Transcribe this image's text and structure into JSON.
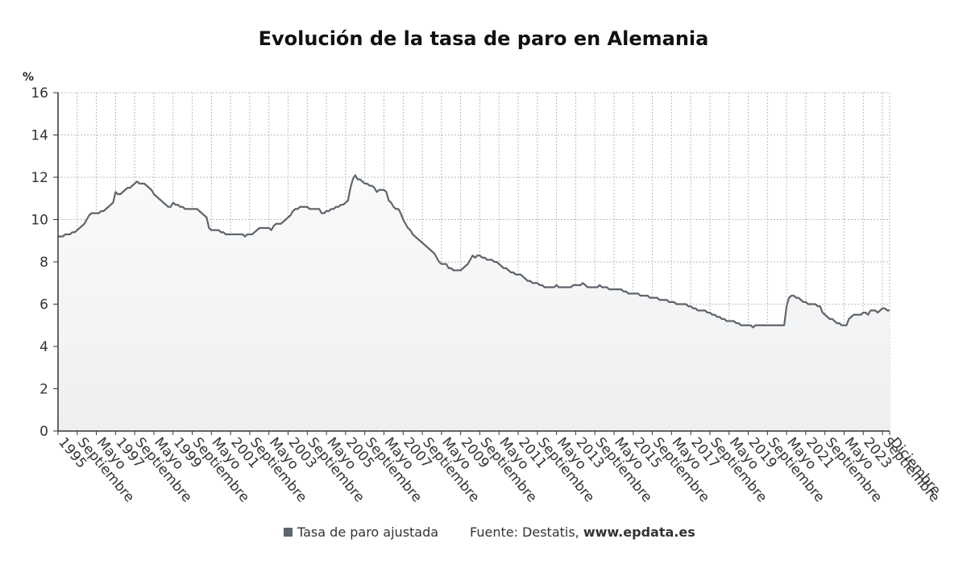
{
  "chart_data": {
    "type": "line",
    "title": "Evolución de la tasa de paro en Alemania",
    "y_label": "%",
    "categories": [
      "1995",
      null,
      null,
      null,
      null,
      null,
      null,
      null,
      "Septiembre",
      null,
      null,
      null,
      null,
      null,
      null,
      null,
      "Mayo",
      null,
      null,
      null,
      null,
      null,
      null,
      null,
      "1997",
      null,
      null,
      null,
      null,
      null,
      null,
      null,
      "Septiembre",
      null,
      null,
      null,
      null,
      null,
      null,
      null,
      "Mayo",
      null,
      null,
      null,
      null,
      null,
      null,
      null,
      "1999",
      null,
      null,
      null,
      null,
      null,
      null,
      null,
      "Septiembre",
      null,
      null,
      null,
      null,
      null,
      null,
      null,
      "Mayo",
      null,
      null,
      null,
      null,
      null,
      null,
      null,
      "2001",
      null,
      null,
      null,
      null,
      null,
      null,
      null,
      "Septiembre",
      null,
      null,
      null,
      null,
      null,
      null,
      null,
      "Mayo",
      null,
      null,
      null,
      null,
      null,
      null,
      null,
      "2003",
      null,
      null,
      null,
      null,
      null,
      null,
      null,
      "Septiembre",
      null,
      null,
      null,
      null,
      null,
      null,
      null,
      "Mayo",
      null,
      null,
      null,
      null,
      null,
      null,
      null,
      "2005",
      null,
      null,
      null,
      null,
      null,
      null,
      null,
      "Septiembre",
      null,
      null,
      null,
      null,
      null,
      null,
      null,
      "Mayo",
      null,
      null,
      null,
      null,
      null,
      null,
      null,
      "2007",
      null,
      null,
      null,
      null,
      null,
      null,
      null,
      "Septiembre",
      null,
      null,
      null,
      null,
      null,
      null,
      null,
      "Mayo",
      null,
      null,
      null,
      null,
      null,
      null,
      null,
      "2009",
      null,
      null,
      null,
      null,
      null,
      null,
      null,
      "Septiembre",
      null,
      null,
      null,
      null,
      null,
      null,
      null,
      "Mayo",
      null,
      null,
      null,
      null,
      null,
      null,
      null,
      "2011",
      null,
      null,
      null,
      null,
      null,
      null,
      null,
      "Septiembre",
      null,
      null,
      null,
      null,
      null,
      null,
      null,
      "Mayo",
      null,
      null,
      null,
      null,
      null,
      null,
      null,
      "2013",
      null,
      null,
      null,
      null,
      null,
      null,
      null,
      "Septiembre",
      null,
      null,
      null,
      null,
      null,
      null,
      null,
      "Mayo",
      null,
      null,
      null,
      null,
      null,
      null,
      null,
      "2015",
      null,
      null,
      null,
      null,
      null,
      null,
      null,
      "Septiembre",
      null,
      null,
      null,
      null,
      null,
      null,
      null,
      "Mayo",
      null,
      null,
      null,
      null,
      null,
      null,
      null,
      "2017",
      null,
      null,
      null,
      null,
      null,
      null,
      null,
      "Septiembre",
      null,
      null,
      null,
      null,
      null,
      null,
      null,
      "Mayo",
      null,
      null,
      null,
      null,
      null,
      null,
      null,
      "2019",
      null,
      null,
      null,
      null,
      null,
      null,
      null,
      "Septiembre",
      null,
      null,
      null,
      null,
      null,
      null,
      null,
      "Mayo",
      null,
      null,
      null,
      null,
      null,
      null,
      null,
      "2021",
      null,
      null,
      null,
      null,
      null,
      null,
      null,
      "Septiembre",
      null,
      null,
      null,
      null,
      null,
      null,
      null,
      "Mayo",
      null,
      null,
      null,
      null,
      null,
      null,
      null,
      "2023",
      null,
      null,
      null,
      null,
      null,
      null,
      null,
      "Septiembre",
      null,
      null,
      "Diciembre"
    ],
    "series": [
      {
        "name": "Tasa de paro ajustada",
        "color": "#5f656c",
        "values": [
          9.2,
          9.2,
          9.2,
          9.3,
          9.3,
          9.3,
          9.4,
          9.4,
          9.5,
          9.6,
          9.7,
          9.8,
          10.0,
          10.2,
          10.3,
          10.3,
          10.3,
          10.3,
          10.4,
          10.4,
          10.5,
          10.6,
          10.7,
          10.8,
          11.3,
          11.2,
          11.2,
          11.3,
          11.4,
          11.5,
          11.5,
          11.6,
          11.7,
          11.8,
          11.7,
          11.7,
          11.7,
          11.6,
          11.5,
          11.4,
          11.2,
          11.1,
          11.0,
          10.9,
          10.8,
          10.7,
          10.6,
          10.6,
          10.8,
          10.7,
          10.7,
          10.6,
          10.6,
          10.5,
          10.5,
          10.5,
          10.5,
          10.5,
          10.5,
          10.4,
          10.3,
          10.2,
          10.1,
          9.6,
          9.5,
          9.5,
          9.5,
          9.5,
          9.4,
          9.4,
          9.3,
          9.3,
          9.3,
          9.3,
          9.3,
          9.3,
          9.3,
          9.3,
          9.2,
          9.3,
          9.3,
          9.3,
          9.4,
          9.5,
          9.6,
          9.6,
          9.6,
          9.6,
          9.6,
          9.5,
          9.7,
          9.8,
          9.8,
          9.8,
          9.9,
          10.0,
          10.1,
          10.2,
          10.4,
          10.5,
          10.5,
          10.6,
          10.6,
          10.6,
          10.6,
          10.5,
          10.5,
          10.5,
          10.5,
          10.5,
          10.3,
          10.3,
          10.4,
          10.4,
          10.5,
          10.5,
          10.6,
          10.6,
          10.7,
          10.7,
          10.8,
          10.9,
          11.5,
          11.9,
          12.1,
          11.9,
          11.9,
          11.8,
          11.7,
          11.7,
          11.6,
          11.6,
          11.5,
          11.3,
          11.4,
          11.4,
          11.4,
          11.3,
          10.9,
          10.8,
          10.6,
          10.5,
          10.5,
          10.3,
          10.0,
          9.8,
          9.6,
          9.5,
          9.3,
          9.2,
          9.1,
          9.0,
          8.9,
          8.8,
          8.7,
          8.6,
          8.5,
          8.4,
          8.2,
          8.0,
          7.9,
          7.9,
          7.9,
          7.7,
          7.7,
          7.6,
          7.6,
          7.6,
          7.6,
          7.7,
          7.8,
          7.9,
          8.1,
          8.3,
          8.2,
          8.3,
          8.3,
          8.2,
          8.2,
          8.1,
          8.1,
          8.1,
          8.0,
          8.0,
          7.9,
          7.8,
          7.7,
          7.7,
          7.6,
          7.5,
          7.5,
          7.4,
          7.4,
          7.4,
          7.3,
          7.2,
          7.1,
          7.1,
          7.0,
          7.0,
          7.0,
          6.9,
          6.9,
          6.8,
          6.8,
          6.8,
          6.8,
          6.8,
          6.9,
          6.8,
          6.8,
          6.8,
          6.8,
          6.8,
          6.8,
          6.9,
          6.9,
          6.9,
          6.9,
          7.0,
          6.9,
          6.8,
          6.8,
          6.8,
          6.8,
          6.8,
          6.9,
          6.8,
          6.8,
          6.8,
          6.7,
          6.7,
          6.7,
          6.7,
          6.7,
          6.7,
          6.6,
          6.6,
          6.5,
          6.5,
          6.5,
          6.5,
          6.5,
          6.4,
          6.4,
          6.4,
          6.4,
          6.3,
          6.3,
          6.3,
          6.3,
          6.2,
          6.2,
          6.2,
          6.2,
          6.1,
          6.1,
          6.1,
          6.0,
          6.0,
          6.0,
          6.0,
          6.0,
          5.9,
          5.9,
          5.8,
          5.8,
          5.7,
          5.7,
          5.7,
          5.7,
          5.6,
          5.6,
          5.5,
          5.5,
          5.4,
          5.4,
          5.3,
          5.3,
          5.2,
          5.2,
          5.2,
          5.2,
          5.1,
          5.1,
          5.0,
          5.0,
          5.0,
          5.0,
          5.0,
          4.9,
          5.0,
          5.0,
          5.0,
          5.0,
          5.0,
          5.0,
          5.0,
          5.0,
          5.0,
          5.0,
          5.0,
          5.0,
          5.0,
          5.9,
          6.3,
          6.4,
          6.4,
          6.3,
          6.3,
          6.2,
          6.1,
          6.1,
          6.0,
          6.0,
          6.0,
          6.0,
          5.9,
          5.9,
          5.6,
          5.5,
          5.4,
          5.3,
          5.3,
          5.2,
          5.1,
          5.1,
          5.0,
          5.0,
          5.0,
          5.3,
          5.4,
          5.5,
          5.5,
          5.5,
          5.5,
          5.6,
          5.6,
          5.5,
          5.7,
          5.7,
          5.7,
          5.6,
          5.7,
          5.8,
          5.8,
          5.7,
          5.7
        ]
      }
    ],
    "ylim": [
      0,
      16
    ],
    "yticks": [
      0,
      2,
      4,
      6,
      8,
      10,
      12,
      14,
      16
    ],
    "grid": true,
    "source": "Fuente: Destatis,",
    "source_link": "www.epdata.es"
  }
}
